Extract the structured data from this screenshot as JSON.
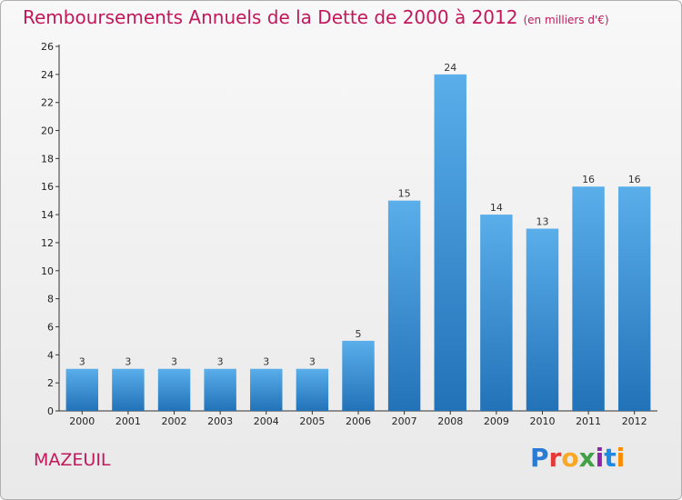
{
  "header": {
    "title": "Remboursements Annuels de la Dette de 2000 à 2012",
    "unit": "(en milliers d'€)"
  },
  "footer": {
    "commune": "MAZEUIL",
    "logo_letters": [
      "P",
      "r",
      "o",
      "x",
      "i",
      "t",
      "i"
    ],
    "logo_colors": [
      "#2a7bd4",
      "#e53935",
      "#f9a825",
      "#43a047",
      "#8e24aa",
      "#1e88e5",
      "#fb8c00"
    ]
  },
  "colors": {
    "bar_top": "#5aaeea",
    "bar_bottom": "#2272b8",
    "title": "#c2185b"
  },
  "chart_data": {
    "type": "bar",
    "categories": [
      "2000",
      "2001",
      "2002",
      "2003",
      "2004",
      "2005",
      "2006",
      "2007",
      "2008",
      "2009",
      "2010",
      "2011",
      "2012"
    ],
    "values": [
      3,
      3,
      3,
      3,
      3,
      3,
      5,
      15,
      24,
      14,
      13,
      16,
      16
    ],
    "ylim": [
      0,
      26
    ],
    "yticks": [
      0,
      2,
      4,
      6,
      8,
      10,
      12,
      14,
      16,
      18,
      20,
      22,
      24,
      26
    ],
    "grid": false
  }
}
